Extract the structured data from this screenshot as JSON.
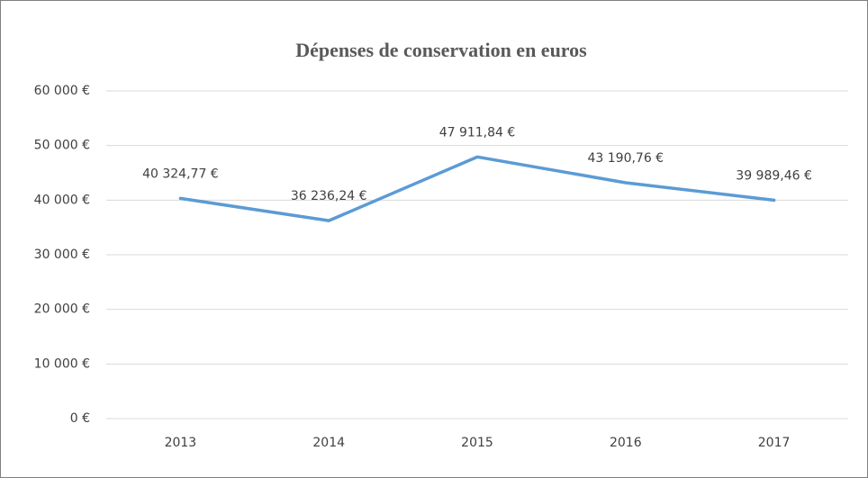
{
  "chart_data": {
    "type": "line",
    "title": "Dépenses de conservation en euros",
    "categories": [
      "2013",
      "2014",
      "2015",
      "2016",
      "2017"
    ],
    "series": [
      {
        "name": "Dépenses",
        "color": "#5b9bd5",
        "values": [
          40324.77,
          36236.24,
          47911.84,
          43190.76,
          39989.46
        ],
        "value_labels": [
          "40 324,77 €",
          "36 236,24 €",
          "47 911,84 €",
          "43 190,76 €",
          "39 989,46 €"
        ]
      }
    ],
    "ylim": [
      0,
      60000
    ],
    "yticks": [
      {
        "value": 0,
        "label": "0 €"
      },
      {
        "value": 10000,
        "label": "10 000 €"
      },
      {
        "value": 20000,
        "label": "20 000 €"
      },
      {
        "value": 30000,
        "label": "30 000 €"
      },
      {
        "value": 40000,
        "label": "40 000 €"
      },
      {
        "value": 50000,
        "label": "50 000 €"
      },
      {
        "value": 60000,
        "label": "60 000 €"
      }
    ],
    "grid": true
  }
}
